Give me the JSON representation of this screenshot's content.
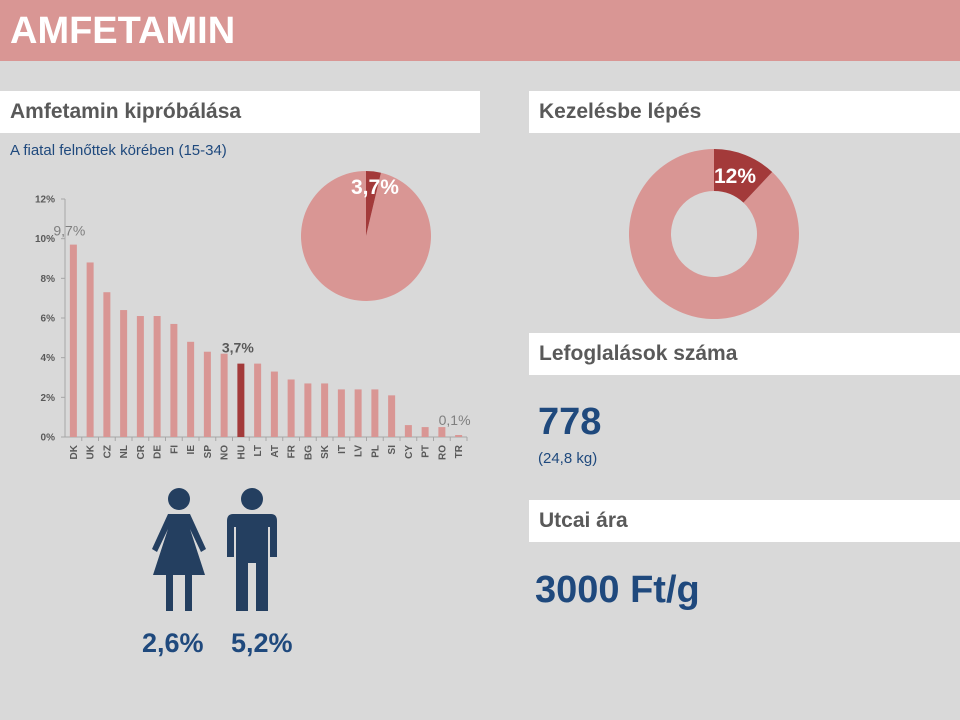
{
  "page_title": "AMFETAMIN",
  "left": {
    "heading": "Amfetamin kipróbálása",
    "subtitle": "A fiatal felnőttek körében (15-34)"
  },
  "pie": {
    "value_label": "3,7%",
    "value": 3.7
  },
  "gender": {
    "female_pct": "2,6%",
    "male_pct": "5,2%",
    "icon_color": "#243f60"
  },
  "right": {
    "treatment_heading": "Kezelésbe lépés",
    "treatment_label": "12%",
    "treatment_value": 12,
    "seizures_heading": "Lefoglalások száma",
    "seizures_count": "778",
    "seizures_weight": "(24,8 kg)",
    "price_heading": "Utcai ára",
    "price_value": "3000 Ft/g"
  },
  "chart_data": {
    "type": "bar",
    "categories": [
      "DK",
      "UK",
      "CZ",
      "NL",
      "CR",
      "DE",
      "FI",
      "IE",
      "SP",
      "NO",
      "HU",
      "LT",
      "AT",
      "FR",
      "BG",
      "SK",
      "IT",
      "LV",
      "PL",
      "SI",
      "CY",
      "PT",
      "RO",
      "TR"
    ],
    "values": [
      9.7,
      8.8,
      7.3,
      6.4,
      6.1,
      6.1,
      5.7,
      4.8,
      4.3,
      4.2,
      3.7,
      3.7,
      3.3,
      2.9,
      2.7,
      2.7,
      2.4,
      2.4,
      2.4,
      2.1,
      0.6,
      0.5,
      0.5,
      0.1
    ],
    "highlight_index": 10,
    "ylim": [
      0,
      12
    ],
    "yticks": [
      "0%",
      "2%",
      "4%",
      "6%",
      "8%",
      "10%",
      "12%"
    ],
    "annotations": [
      "9,7%",
      "3,7%",
      "0,1%"
    ],
    "colors": {
      "bar": "#d99694",
      "highlight": "#a33a3a",
      "pie_main": "#d99694",
      "pie_slice": "#a33a3a"
    }
  }
}
